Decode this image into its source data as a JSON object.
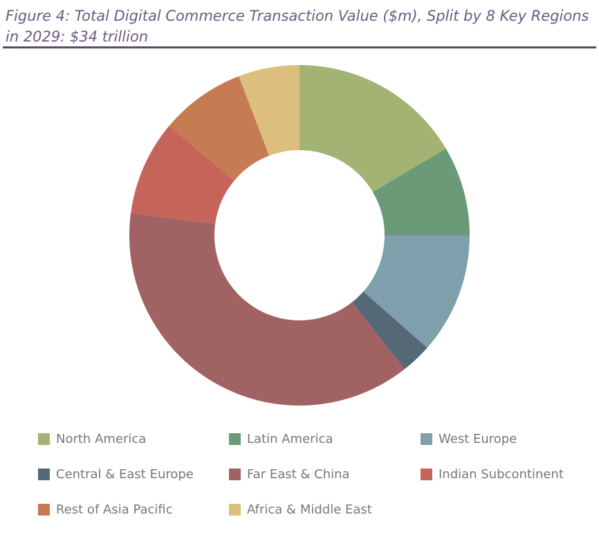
{
  "chart_data": {
    "type": "donut",
    "title": "Figure 4: Total Digital Commerce Transaction Value ($m), Split by 8 Key Regions in 2029: $34 trillion",
    "categories": [
      "North America",
      "Latin America",
      "West Europe",
      "Central & East Europe",
      "Far East & China",
      "Indian Subcontinent",
      "Rest of Asia Pacific",
      "Africa & Middle East"
    ],
    "values": [
      16.5,
      8.5,
      11.5,
      2.9,
      37.7,
      9.0,
      8.1,
      5.8
    ],
    "colors": [
      "#a3b374",
      "#6a9a78",
      "#7f9fad",
      "#546878",
      "#a06262",
      "#c5655a",
      "#c77b52",
      "#dcbf7f"
    ],
    "legend": "bottom"
  }
}
